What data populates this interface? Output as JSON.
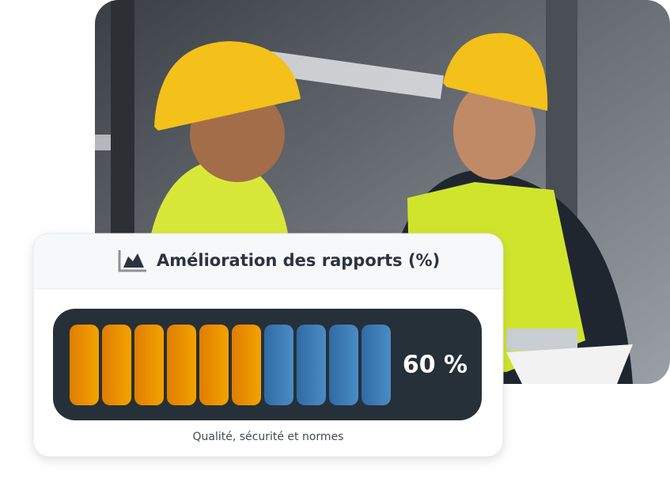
{
  "card": {
    "title": "Amélioration des rapports (%)",
    "value": 60,
    "value_label": "60 %",
    "caption": "Qualité, sécurité et normes"
  }
}
